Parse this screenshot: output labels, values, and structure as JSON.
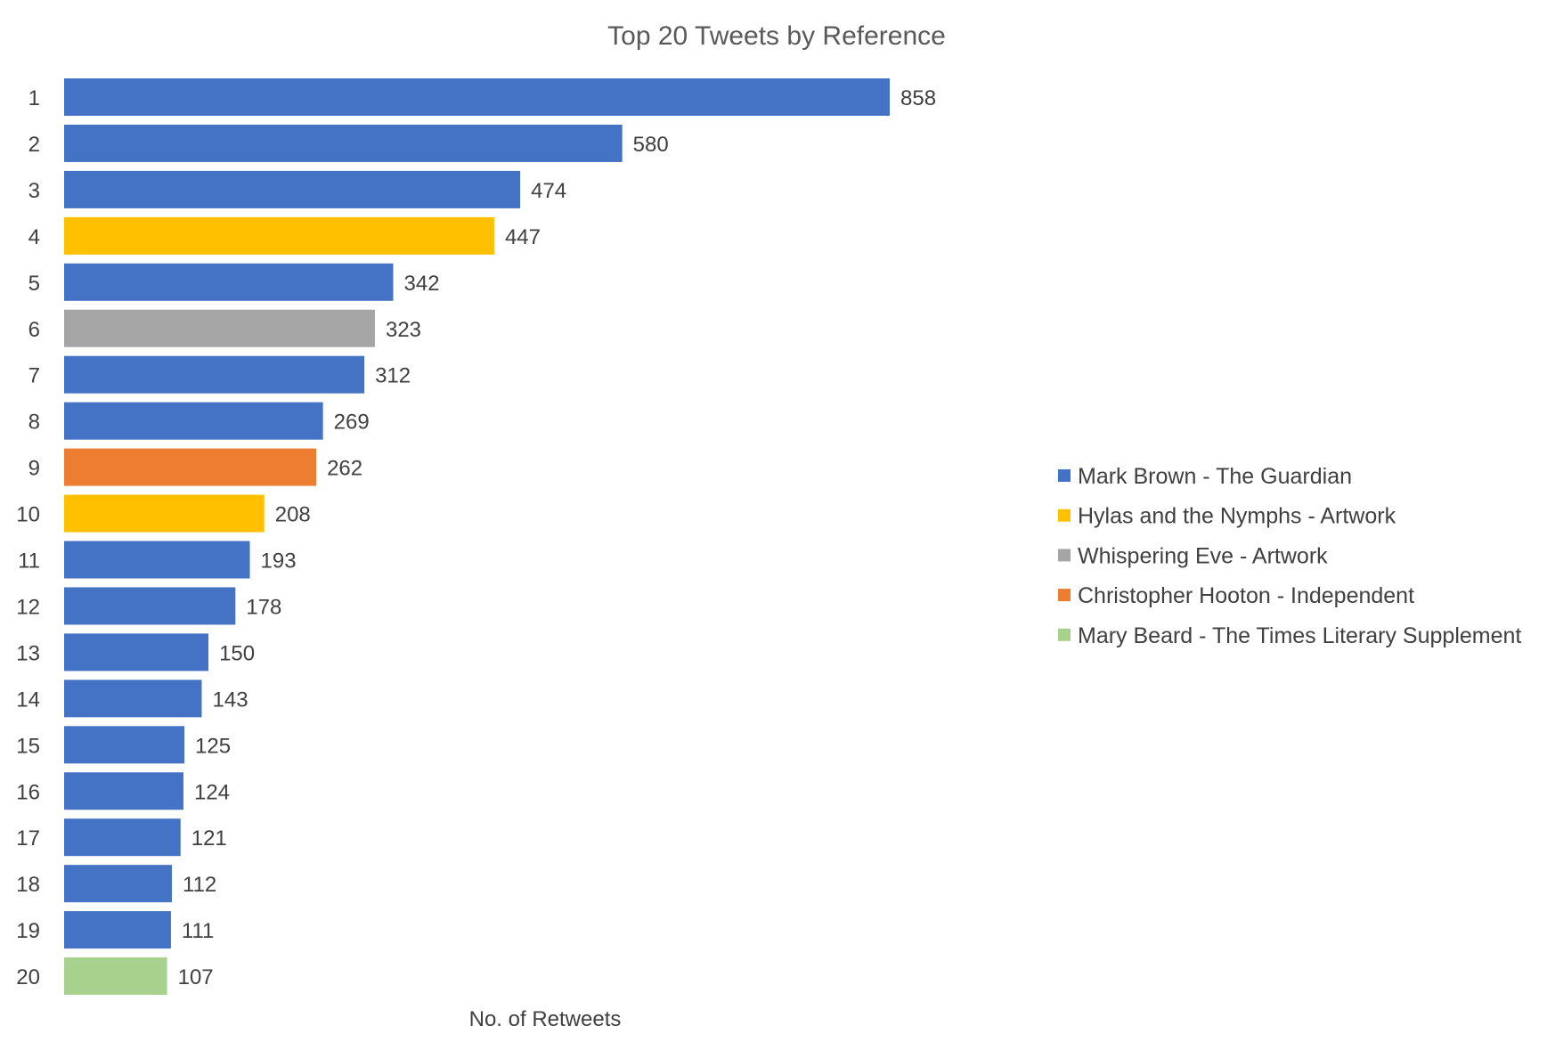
{
  "chart_data": {
    "type": "bar",
    "orientation": "horizontal",
    "title": "Top 20 Tweets by Reference",
    "xlabel": "No. of Retweets",
    "ylabel": "",
    "xlim": [
      0,
      1600
    ],
    "grid": false,
    "legend_position": "right",
    "categories": [
      "1",
      "2",
      "3",
      "4",
      "5",
      "6",
      "7",
      "8",
      "9",
      "10",
      "11",
      "12",
      "13",
      "14",
      "15",
      "16",
      "17",
      "18",
      "19",
      "20"
    ],
    "values": [
      858,
      580,
      474,
      447,
      342,
      323,
      312,
      269,
      262,
      208,
      193,
      178,
      150,
      143,
      125,
      124,
      121,
      112,
      111,
      107
    ],
    "bar_groups": [
      0,
      0,
      0,
      1,
      0,
      2,
      0,
      0,
      3,
      1,
      0,
      0,
      0,
      0,
      0,
      0,
      0,
      0,
      0,
      4
    ],
    "legend": [
      {
        "name": "Mark Brown - The Guardian",
        "color": "#4472C4"
      },
      {
        "name": "Hylas and the Nymphs - Artwork",
        "color": "#FFC000"
      },
      {
        "name": "Whispering Eve - Artwork",
        "color": "#A5A5A5"
      },
      {
        "name": "Christopher Hooton - Independent",
        "color": "#ED7D31"
      },
      {
        "name": "Mary Beard - The Times Literary Supplement",
        "color": "#A9D18E"
      }
    ]
  }
}
